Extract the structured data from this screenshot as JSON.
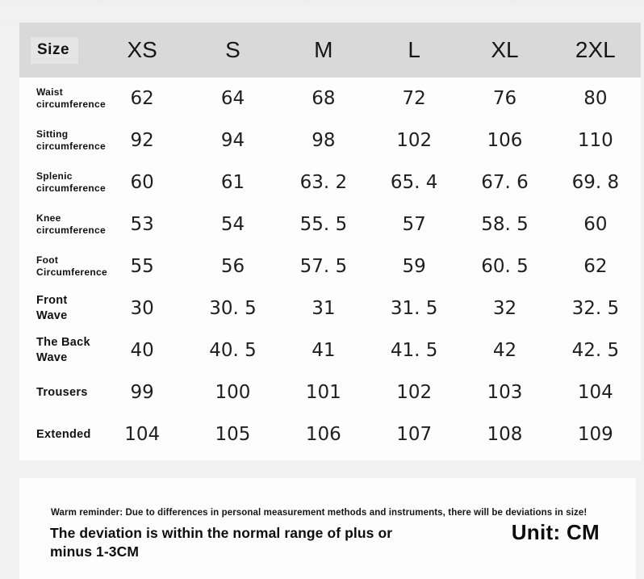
{
  "table": {
    "size_label": "Size",
    "columns": [
      "XS",
      "S",
      "M",
      "L",
      "XL",
      "2XL"
    ],
    "rows": [
      {
        "label": "Waist\ncircumference",
        "values": [
          "62",
          "64",
          "68",
          "72",
          "76",
          "80"
        ]
      },
      {
        "label": "Sitting\ncircumference",
        "values": [
          "92",
          "94",
          "98",
          "102",
          "106",
          "110"
        ]
      },
      {
        "label": "Splenic\ncircumference",
        "values": [
          "60",
          "61",
          "63. 2",
          "65. 4",
          "67. 6",
          "69. 8"
        ]
      },
      {
        "label": "Knee\ncircumference",
        "values": [
          "53",
          "54",
          "55. 5",
          "57",
          "58. 5",
          "60"
        ]
      },
      {
        "label": "Foot\nCircumference",
        "values": [
          "55",
          "56",
          "57. 5",
          "59",
          "60. 5",
          "62"
        ]
      },
      {
        "label": "Front\nWave",
        "values": [
          "30",
          "30. 5",
          "31",
          "31. 5",
          "32",
          "32. 5"
        ]
      },
      {
        "label": "The Back\nWave",
        "values": [
          "40",
          "40. 5",
          "41",
          "41. 5",
          "42",
          "42. 5"
        ]
      },
      {
        "label": "Trousers",
        "values": [
          "99",
          "100",
          "101",
          "102",
          "103",
          "104"
        ]
      },
      {
        "label": "Extended",
        "values": [
          "104",
          "105",
          "106",
          "107",
          "108",
          "109"
        ]
      }
    ]
  },
  "footer": {
    "warm_reminder": "Warm reminder: Due to differences in personal measurement methods and instruments, there will be deviations in size!",
    "deviation_note": "The deviation is within the normal range of plus or\nminus 1-3CM",
    "unit_label": "Unit: CM"
  },
  "colors": {
    "page_bg": "#f1f1f1",
    "header_band": "#d9d9d9",
    "size_cell_bg": "#e5e5e5",
    "card_bg": "#fdfdfd",
    "text": "#1c1c1c"
  }
}
